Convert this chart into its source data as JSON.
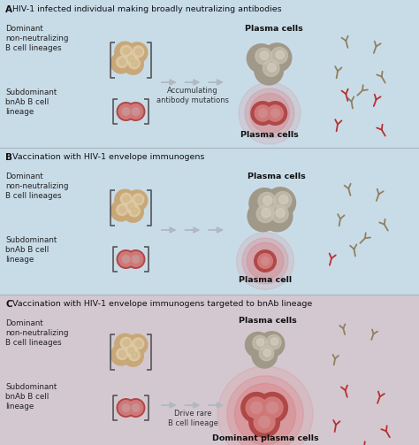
{
  "panel_A_title": "HIV-1 infected individual making broadly neutralizing antibodies",
  "panel_B_title": "Vaccination with HIV-1 envelope immunogens",
  "panel_C_title": "Vaccination with HIV-1 envelope immunogens targeted to bnAb lineage",
  "bg_A": "#c8dce8",
  "bg_B": "#c8dce8",
  "bg_C": "#d4c8d0",
  "dominant_label": "Dominant\nnon-neutralizing\nB cell lineages",
  "subdominant_label": "Subdominant\nbnAb B cell\nlineage",
  "A_center_label": "Accumulating\nantibody mutations",
  "C_center_label": "Drive rare\nB cell lineage",
  "plasma_cells_label": "Plasma cells",
  "plasma_cell_label": "Plasma cell",
  "dominant_plasma_label": "Dominant plasma cells",
  "tan_outer": "#c8a878",
  "tan_inner": "#e0cca8",
  "tan_center": "#d0b888",
  "red_outer": "#b04848",
  "red_inner": "#d07878",
  "red_center": "#c89898",
  "gray_outer": "#a09888",
  "gray_inner": "#c8c0b0",
  "gray_center": "#d8d0c0",
  "red_glow": "#e06060",
  "antibody_tan": "#908060",
  "antibody_red": "#b83030",
  "panel_divider": "#b0b8c0",
  "label_color": "#222222",
  "bracket_color": "#555555"
}
